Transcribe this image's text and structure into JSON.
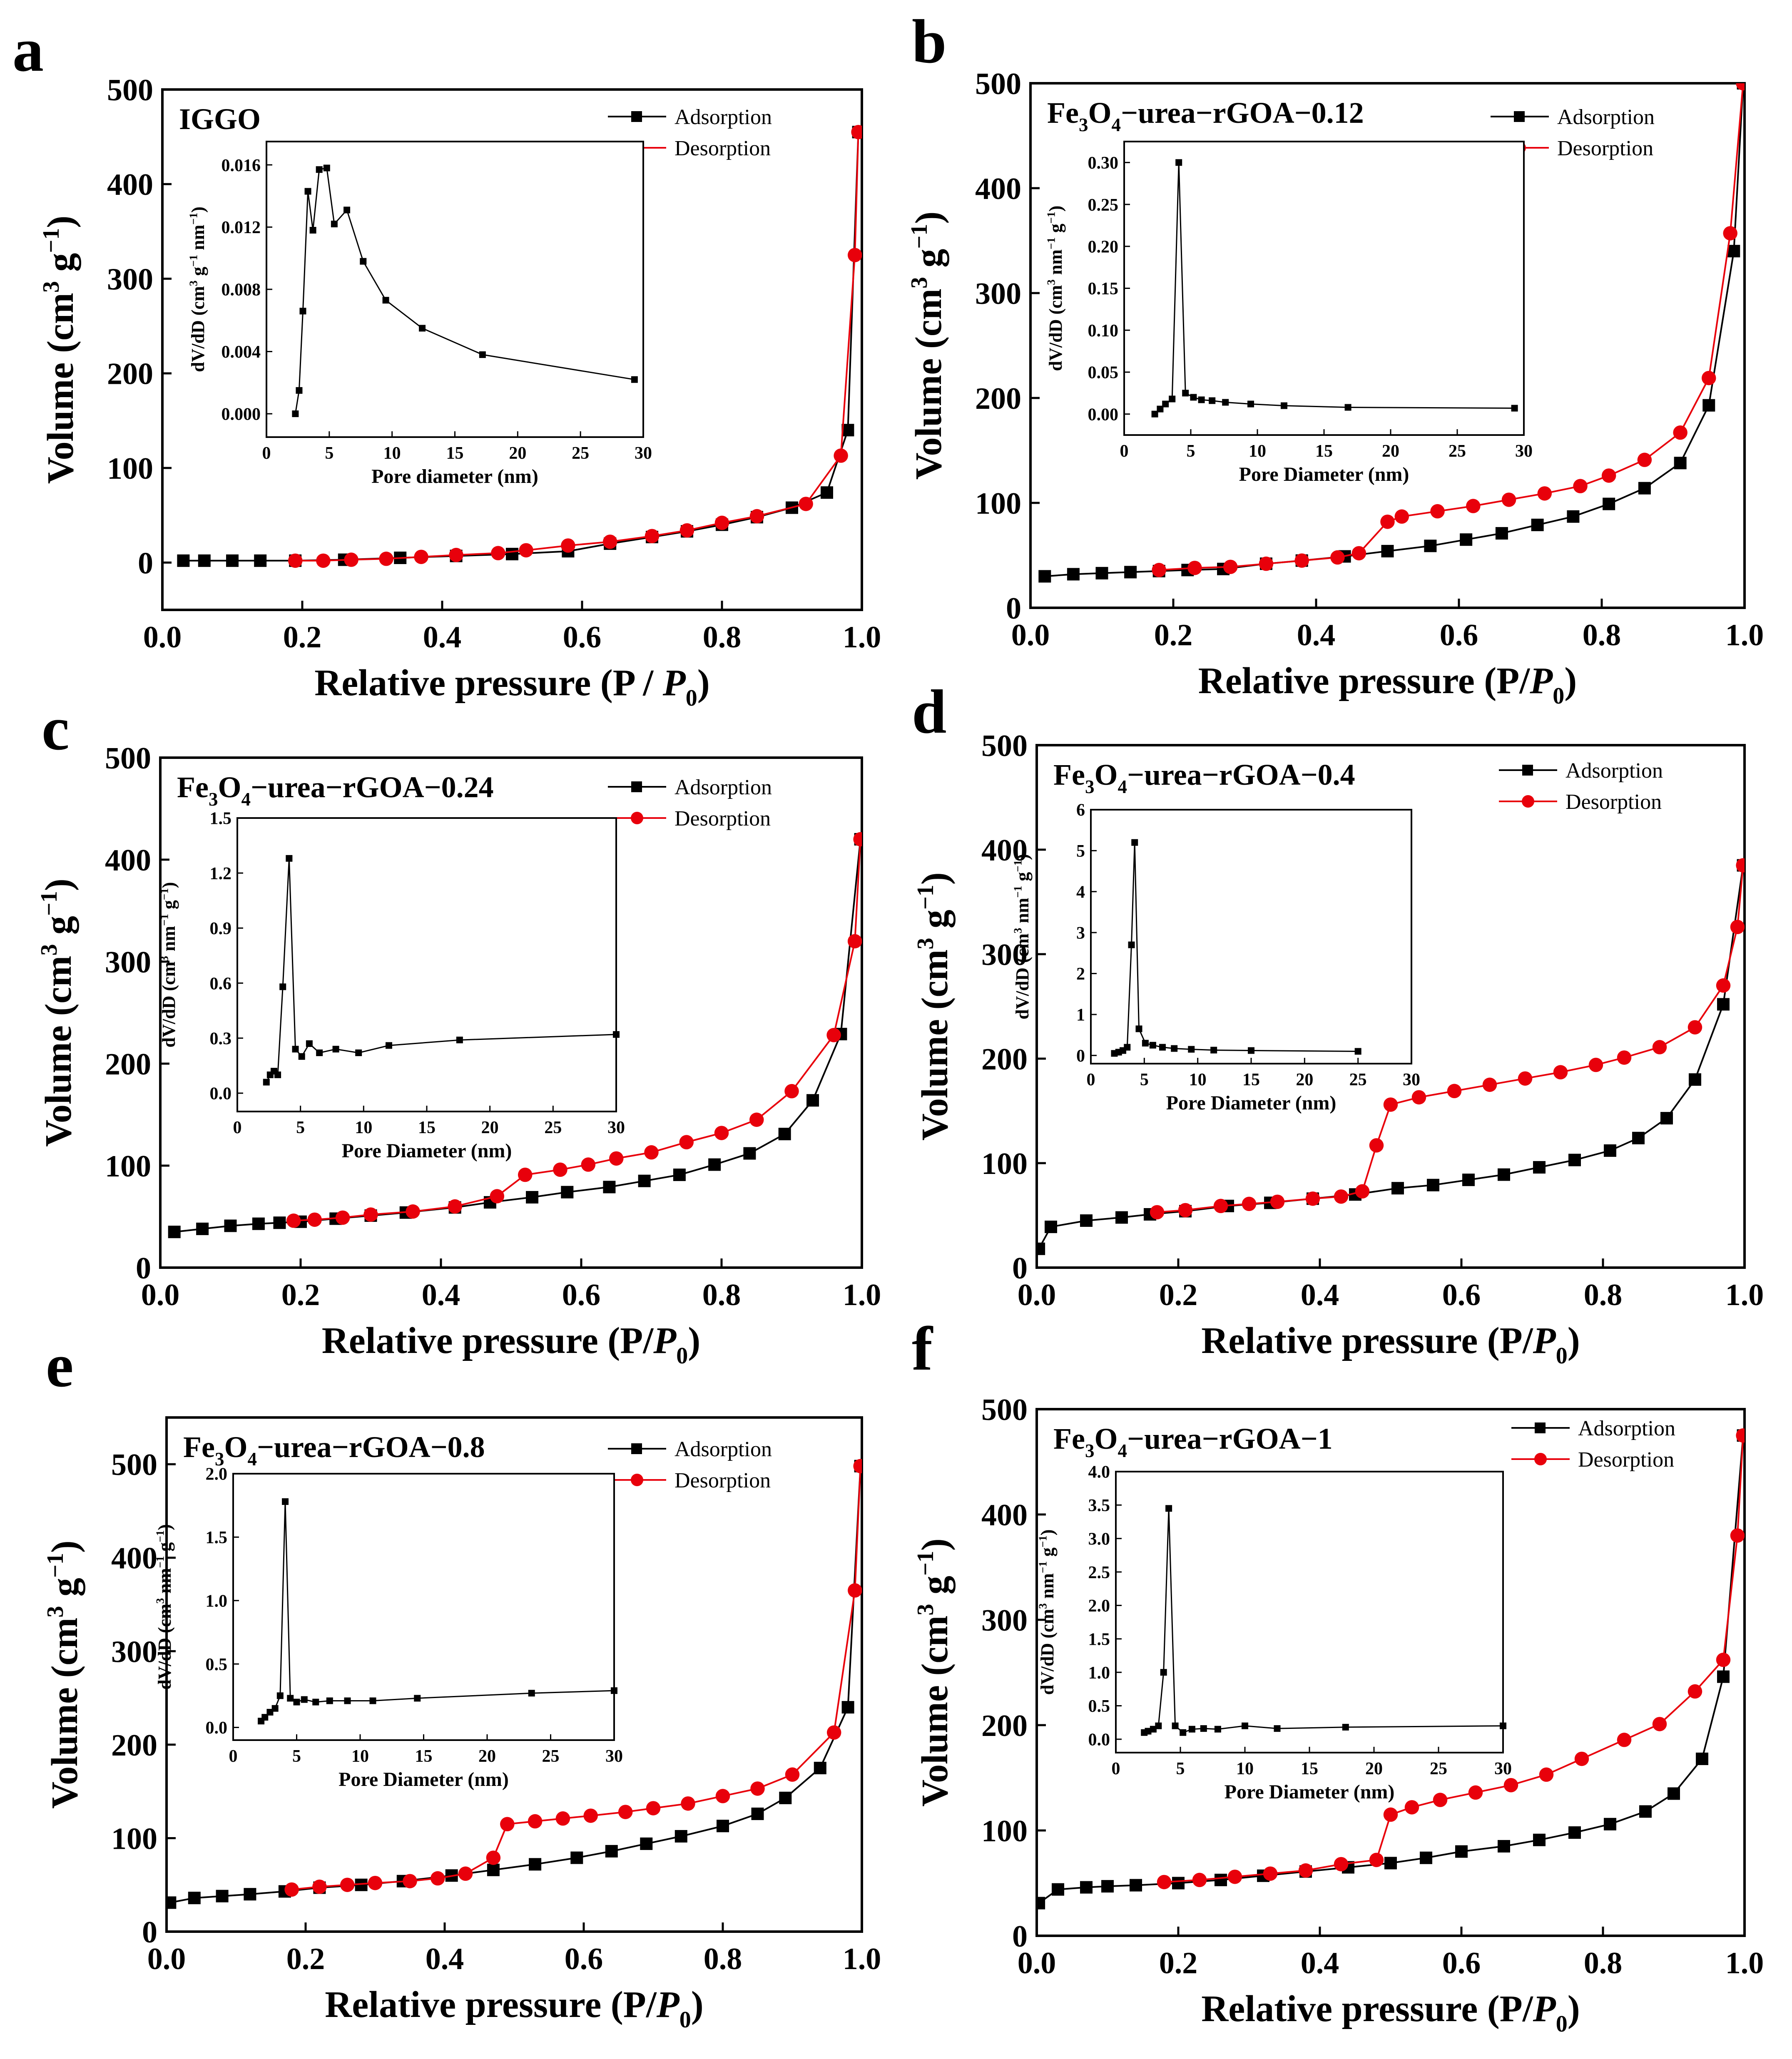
{
  "colors": {
    "adsorption": "#000000",
    "desorption": "#e8000b",
    "axis": "#000000"
  },
  "legend": {
    "adsorption": "Adsorption",
    "desorption": "Desorption"
  },
  "chart_data": [
    {
      "panel": "a",
      "type": "line",
      "title": "IGGO",
      "xlabel": "Relative pressure (P / P0)",
      "ylabel": "Volume (cm3 g−1)",
      "xlim": [
        0,
        1
      ],
      "ylim": [
        -50,
        500
      ],
      "xticks": [
        "0.0",
        "0.2",
        "0.4",
        "0.6",
        "0.8",
        "1.0"
      ],
      "yticks": [
        "0",
        "100",
        "200",
        "300",
        "400",
        "500"
      ],
      "legend_position": "top-right",
      "series": [
        {
          "name": "Adsorption",
          "x": [
            0.03,
            0.06,
            0.1,
            0.14,
            0.19,
            0.26,
            0.34,
            0.42,
            0.5,
            0.58,
            0.64,
            0.7,
            0.75,
            0.8,
            0.85,
            0.9,
            0.95,
            0.98,
            0.995
          ],
          "y": [
            2,
            2,
            2,
            2,
            2,
            3,
            5,
            7,
            9,
            12,
            20,
            27,
            33,
            40,
            48,
            58,
            74,
            140,
            455
          ]
        },
        {
          "name": "Desorption",
          "x": [
            0.995,
            0.99,
            0.97,
            0.92,
            0.85,
            0.8,
            0.75,
            0.7,
            0.64,
            0.58,
            0.52,
            0.48,
            0.42,
            0.37,
            0.32,
            0.27,
            0.23,
            0.19
          ],
          "y": [
            455,
            325,
            113,
            62,
            49,
            42,
            34,
            28,
            22,
            18,
            13,
            10,
            8,
            6,
            4,
            3,
            2,
            2
          ]
        }
      ],
      "inset": {
        "xlabel": "Pore diameter (nm)",
        "ylabel": "dV/dD (cm3 g−1 nm−1)",
        "xlim": [
          0,
          30
        ],
        "ylim": [
          -0.0015,
          0.0175
        ],
        "xticks": [
          "0",
          "5",
          "10",
          "15",
          "20",
          "25",
          "30"
        ],
        "yticks": [
          "0.000",
          "0.004",
          "0.008",
          "0.012",
          "0.016"
        ],
        "x": [
          2.3,
          2.6,
          2.9,
          3.3,
          3.7,
          4.2,
          4.8,
          5.4,
          6.4,
          7.7,
          9.5,
          12.4,
          17.2,
          29.3
        ],
        "y": [
          0.0,
          0.0015,
          0.0066,
          0.0143,
          0.0118,
          0.0157,
          0.0158,
          0.0122,
          0.0131,
          0.0098,
          0.0073,
          0.0055,
          0.0038,
          0.0022
        ]
      }
    },
    {
      "panel": "b",
      "type": "line",
      "title": "Fe3O4−urea−rGOA−0.12",
      "xlabel": "Relative pressure (P/P0)",
      "ylabel": "Volume (cm3 g−1)",
      "xlim": [
        0,
        1
      ],
      "ylim": [
        0,
        500
      ],
      "xticks": [
        "0.0",
        "0.2",
        "0.4",
        "0.6",
        "0.8",
        "1.0"
      ],
      "yticks": [
        "0",
        "100",
        "200",
        "300",
        "400",
        "500"
      ],
      "legend_position": "top-right",
      "series": [
        {
          "name": "Adsorption",
          "x": [
            0.02,
            0.06,
            0.1,
            0.14,
            0.18,
            0.22,
            0.27,
            0.33,
            0.38,
            0.44,
            0.5,
            0.56,
            0.61,
            0.66,
            0.71,
            0.76,
            0.81,
            0.86,
            0.91,
            0.95,
            0.985,
            0.998
          ],
          "y": [
            30,
            32,
            33,
            34,
            35,
            36,
            37,
            42,
            45,
            49,
            54,
            59,
            65,
            71,
            79,
            87,
            99,
            114,
            138,
            193,
            340,
            500
          ]
        },
        {
          "name": "Desorption",
          "x": [
            0.998,
            0.98,
            0.95,
            0.91,
            0.86,
            0.81,
            0.77,
            0.72,
            0.67,
            0.62,
            0.57,
            0.52,
            0.5,
            0.46,
            0.43,
            0.38,
            0.33,
            0.28,
            0.23,
            0.18
          ],
          "y": [
            500,
            357,
            219,
            167,
            141,
            126,
            116,
            109,
            103,
            97,
            92,
            87,
            82,
            52,
            48,
            45,
            42,
            39,
            38,
            36
          ]
        }
      ],
      "inset": {
        "xlabel": "Pore Diameter (nm)",
        "ylabel": "dV/dD (cm3 nm−1 g−1)",
        "xlim": [
          0,
          30
        ],
        "ylim": [
          -0.025,
          0.325
        ],
        "xticks": [
          "0",
          "5",
          "10",
          "15",
          "20",
          "25",
          "30"
        ],
        "yticks": [
          "0.00",
          "0.05",
          "0.10",
          "0.15",
          "0.20",
          "0.25",
          "0.30"
        ],
        "x": [
          2.3,
          2.7,
          3.1,
          3.6,
          4.1,
          4.6,
          5.2,
          5.8,
          6.6,
          7.6,
          9.5,
          12,
          16.8,
          29.3
        ],
        "y": [
          0.0,
          0.006,
          0.012,
          0.018,
          0.3,
          0.025,
          0.02,
          0.017,
          0.016,
          0.014,
          0.012,
          0.01,
          0.008,
          0.007
        ]
      }
    },
    {
      "panel": "c",
      "type": "line",
      "title": "Fe3O4−urea−rGOA−0.24",
      "xlabel": "Relative pressure (P/P0)",
      "ylabel": "Volume (cm3 g−1)",
      "xlim": [
        0,
        1
      ],
      "ylim": [
        0,
        500
      ],
      "xticks": [
        "0.0",
        "0.2",
        "0.4",
        "0.6",
        "0.8",
        "1.0"
      ],
      "yticks": [
        "0",
        "100",
        "200",
        "300",
        "400",
        "500"
      ],
      "legend_position": "top-right",
      "series": [
        {
          "name": "Adsorption",
          "x": [
            0.02,
            0.06,
            0.1,
            0.14,
            0.17,
            0.2,
            0.25,
            0.3,
            0.35,
            0.42,
            0.47,
            0.53,
            0.58,
            0.64,
            0.69,
            0.74,
            0.79,
            0.84,
            0.89,
            0.93,
            0.97,
            0.998
          ],
          "y": [
            35,
            38,
            41,
            43,
            44,
            45,
            48,
            51,
            54,
            59,
            64,
            69,
            74,
            79,
            85,
            91,
            101,
            112,
            131,
            164,
            229,
            420
          ]
        },
        {
          "name": "Desorption",
          "x": [
            0.998,
            0.99,
            0.96,
            0.9,
            0.85,
            0.8,
            0.75,
            0.7,
            0.65,
            0.61,
            0.57,
            0.52,
            0.48,
            0.42,
            0.36,
            0.3,
            0.26,
            0.22,
            0.19
          ],
          "y": [
            420,
            320,
            228,
            173,
            145,
            132,
            123,
            113,
            107,
            101,
            96,
            91,
            70,
            60,
            55,
            52,
            49,
            47,
            46
          ]
        }
      ],
      "inset": {
        "xlabel": "Pore Diameter (nm)",
        "ylabel": "dV/dD (cm3 nm−1 g−1)",
        "xlim": [
          0,
          30
        ],
        "ylim": [
          -0.1,
          1.5
        ],
        "xticks": [
          "0",
          "5",
          "10",
          "15",
          "20",
          "25",
          "30"
        ],
        "yticks": [
          "0.0",
          "0.3",
          "0.6",
          "0.9",
          "1.2",
          "1.5"
        ],
        "x": [
          2.3,
          2.6,
          2.9,
          3.2,
          3.6,
          4.1,
          4.6,
          5.1,
          5.7,
          6.5,
          7.8,
          9.6,
          12,
          17.6,
          30
        ],
        "y": [
          0.06,
          0.1,
          0.12,
          0.1,
          0.58,
          1.28,
          0.24,
          0.2,
          0.27,
          0.22,
          0.24,
          0.22,
          0.26,
          0.29,
          0.32
        ]
      }
    },
    {
      "panel": "d",
      "type": "line",
      "title": "Fe3O4−urea−rGOA−0.4",
      "xlabel": "Relative pressure (P/P0)",
      "ylabel": "Volume (cm3 g−1)",
      "xlim": [
        0,
        1
      ],
      "ylim": [
        0,
        500
      ],
      "xticks": [
        "0.0",
        "0.2",
        "0.4",
        "0.6",
        "0.8",
        "1.0"
      ],
      "yticks": [
        "0",
        "100",
        "200",
        "300",
        "400",
        "500"
      ],
      "legend_position": "top-right",
      "series": [
        {
          "name": "Adsorption",
          "x": [
            0.003,
            0.02,
            0.07,
            0.12,
            0.16,
            0.21,
            0.27,
            0.33,
            0.39,
            0.45,
            0.51,
            0.56,
            0.61,
            0.66,
            0.71,
            0.76,
            0.81,
            0.85,
            0.89,
            0.93,
            0.97,
            0.998
          ],
          "y": [
            18,
            39,
            45,
            48,
            51,
            54,
            59,
            62,
            66,
            70,
            76,
            79,
            84,
            89,
            96,
            103,
            112,
            124,
            143,
            180,
            252,
            385
          ]
        },
        {
          "name": "Desorption",
          "x": [
            0.998,
            0.99,
            0.97,
            0.93,
            0.88,
            0.83,
            0.79,
            0.74,
            0.69,
            0.64,
            0.59,
            0.54,
            0.5,
            0.48,
            0.46,
            0.43,
            0.39,
            0.34,
            0.3,
            0.26,
            0.21,
            0.17
          ],
          "y": [
            385,
            326,
            270,
            230,
            211,
            201,
            194,
            187,
            181,
            175,
            169,
            163,
            156,
            117,
            73,
            68,
            66,
            63,
            61,
            59,
            55,
            53
          ]
        }
      ],
      "inset": {
        "xlabel": "Pore Diameter (nm)",
        "ylabel": "dV/dD (cm3 nm−1 g−1)",
        "xlim": [
          0,
          30
        ],
        "ylim": [
          -0.2,
          6
        ],
        "xticks": [
          "0",
          "5",
          "10",
          "15",
          "20",
          "25",
          "30"
        ],
        "yticks": [
          "0",
          "1",
          "2",
          "3",
          "4",
          "5",
          "6"
        ],
        "x": [
          2.2,
          2.6,
          3.0,
          3.4,
          3.8,
          4.1,
          4.5,
          5.1,
          5.8,
          6.7,
          7.8,
          9.4,
          11.5,
          15,
          25
        ],
        "y": [
          0.05,
          0.08,
          0.12,
          0.2,
          2.7,
          5.2,
          0.65,
          0.3,
          0.25,
          0.2,
          0.17,
          0.15,
          0.13,
          0.12,
          0.1
        ]
      }
    },
    {
      "panel": "e",
      "type": "line",
      "title": "Fe3O4−urea−rGOA−0.8",
      "xlabel": "Relative pressure (P/P0)",
      "ylabel": "Volume (cm3 g−1)",
      "xlim": [
        0,
        1
      ],
      "ylim": [
        0,
        550
      ],
      "xticks": [
        "0.0",
        "0.2",
        "0.4",
        "0.6",
        "0.8",
        "1.0"
      ],
      "yticks": [
        "0",
        "100",
        "200",
        "300",
        "400",
        "500"
      ],
      "legend_position": "top-right",
      "series": [
        {
          "name": "Adsorption",
          "x": [
            0.005,
            0.04,
            0.08,
            0.12,
            0.17,
            0.22,
            0.28,
            0.34,
            0.41,
            0.47,
            0.53,
            0.59,
            0.64,
            0.69,
            0.74,
            0.8,
            0.85,
            0.89,
            0.94,
            0.98,
            0.998
          ],
          "y": [
            31,
            36,
            38,
            40,
            43,
            47,
            50,
            54,
            60,
            66,
            72,
            79,
            86,
            94,
            102,
            113,
            126,
            143,
            175,
            240,
            498
          ]
        },
        {
          "name": "Desorption",
          "x": [
            0.998,
            0.99,
            0.96,
            0.9,
            0.85,
            0.8,
            0.75,
            0.7,
            0.66,
            0.61,
            0.57,
            0.53,
            0.49,
            0.47,
            0.43,
            0.39,
            0.35,
            0.3,
            0.26,
            0.22,
            0.18
          ],
          "y": [
            498,
            365,
            213,
            168,
            153,
            145,
            137,
            132,
            128,
            124,
            121,
            118,
            115,
            79,
            62,
            57,
            54,
            52,
            50,
            48,
            45
          ]
        }
      ],
      "inset": {
        "xlabel": "Pore Diameter (nm)",
        "ylabel": "dV/dD (cm3 nm−1 g−1)",
        "xlim": [
          0,
          30
        ],
        "ylim": [
          -0.1,
          2.0
        ],
        "xticks": [
          "0",
          "5",
          "10",
          "15",
          "20",
          "25",
          "30"
        ],
        "yticks": [
          "0.0",
          "0.5",
          "1.0",
          "1.5",
          "2.0"
        ],
        "x": [
          2.2,
          2.5,
          2.9,
          3.3,
          3.7,
          4.1,
          4.5,
          5.0,
          5.6,
          6.5,
          7.6,
          9.0,
          11,
          14.5,
          23.5,
          30
        ],
        "y": [
          0.05,
          0.08,
          0.12,
          0.15,
          0.25,
          1.78,
          0.23,
          0.2,
          0.22,
          0.2,
          0.21,
          0.21,
          0.21,
          0.23,
          0.27,
          0.29
        ]
      }
    },
    {
      "panel": "f",
      "type": "line",
      "title": "Fe3O4−urea−rGOA−1",
      "xlabel": "Relative pressure (P/P0)",
      "ylabel": "Volume (cm3 g−1)",
      "xlim": [
        0,
        1
      ],
      "ylim": [
        0,
        500
      ],
      "xticks": [
        "0.0",
        "0.2",
        "0.4",
        "0.6",
        "0.8",
        "1.0"
      ],
      "yticks": [
        "0",
        "100",
        "200",
        "300",
        "400",
        "500"
      ],
      "legend_position": "top-right",
      "series": [
        {
          "name": "Adsorption",
          "x": [
            0.003,
            0.03,
            0.07,
            0.1,
            0.14,
            0.2,
            0.26,
            0.32,
            0.38,
            0.44,
            0.5,
            0.55,
            0.6,
            0.66,
            0.71,
            0.76,
            0.81,
            0.86,
            0.9,
            0.94,
            0.97,
            0.998
          ],
          "y": [
            31,
            44,
            46,
            47,
            48,
            50,
            53,
            57,
            61,
            65,
            69,
            74,
            80,
            85,
            91,
            98,
            106,
            118,
            135,
            168,
            246,
            475
          ]
        },
        {
          "name": "Desorption",
          "x": [
            0.998,
            0.99,
            0.97,
            0.93,
            0.88,
            0.83,
            0.77,
            0.72,
            0.67,
            0.62,
            0.57,
            0.53,
            0.5,
            0.48,
            0.43,
            0.38,
            0.33,
            0.28,
            0.23,
            0.18
          ],
          "y": [
            475,
            380,
            262,
            232,
            201,
            186,
            168,
            153,
            143,
            136,
            129,
            122,
            115,
            72,
            68,
            62,
            59,
            56,
            53,
            51
          ]
        }
      ],
      "inset": {
        "xlabel": "Pore Diameter (nm)",
        "ylabel": "dV/dD (cm3 nm−1 g−1)",
        "xlim": [
          0,
          30
        ],
        "ylim": [
          -0.2,
          4.0
        ],
        "xticks": [
          "0",
          "5",
          "10",
          "15",
          "20",
          "25",
          "30"
        ],
        "yticks": [
          "0.0",
          "0.5",
          "1.0",
          "1.5",
          "2.0",
          "2.5",
          "3.0",
          "3.5",
          "4.0"
        ],
        "x": [
          2.2,
          2.5,
          2.9,
          3.3,
          3.7,
          4.1,
          4.6,
          5.2,
          5.9,
          6.8,
          7.9,
          10,
          12.5,
          17.8,
          30
        ],
        "y": [
          0.1,
          0.12,
          0.15,
          0.2,
          1.0,
          3.45,
          0.2,
          0.1,
          0.15,
          0.16,
          0.15,
          0.2,
          0.16,
          0.18,
          0.2
        ]
      }
    }
  ]
}
